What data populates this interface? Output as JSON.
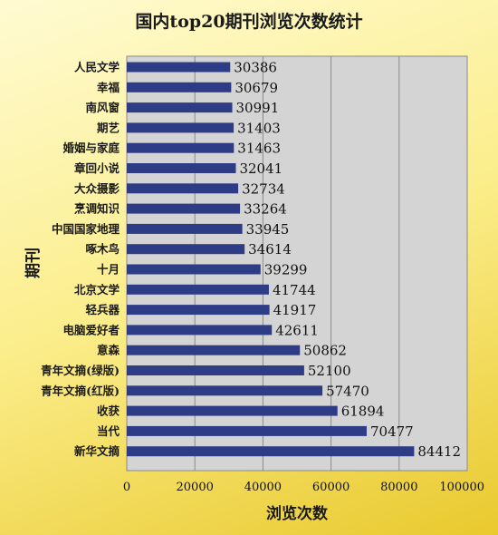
{
  "chart_data": {
    "type": "bar",
    "orientation": "horizontal",
    "title": "国内top20期刊浏览次数统计",
    "xlabel": "浏览次数",
    "ylabel": "期刊",
    "xlim": [
      0,
      100000
    ],
    "xticks": [
      0,
      20000,
      40000,
      60000,
      80000,
      100000
    ],
    "grid": true,
    "bar_color": "#2e3c86",
    "plot_background": "#d4d4d4",
    "categories": [
      "人民文学",
      "幸福",
      "南风窗",
      "期艺",
      "婚姻与家庭",
      "章回小说",
      "大众摄影",
      "烹调知识",
      "中国国家地理",
      "啄木鸟",
      "十月",
      "北京文学",
      "轻兵器",
      "电脑爱好者",
      "意森",
      "青年文摘(绿版)",
      "青年文摘(红版)",
      "收获",
      "当代",
      "新华文摘"
    ],
    "values": [
      30386,
      30679,
      30991,
      31403,
      31463,
      32041,
      32734,
      33264,
      33945,
      34614,
      39299,
      41744,
      41917,
      42611,
      50862,
      52100,
      57470,
      61894,
      70477,
      84412
    ]
  }
}
